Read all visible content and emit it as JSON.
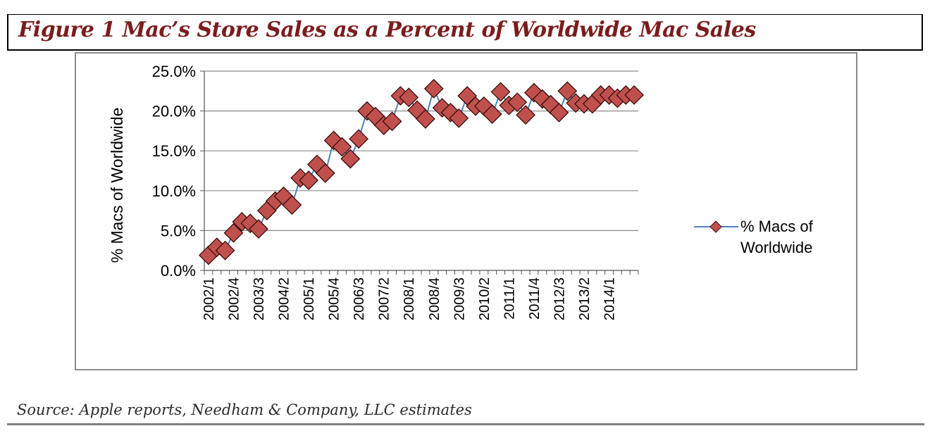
{
  "figure": {
    "title": "Figure 1   Mac’s Store Sales as a Percent of Worldwide Mac Sales",
    "source": "Source: Apple reports, Needham & Company, LLC estimates"
  },
  "colors": {
    "title": "#7b1c1c",
    "marker_fill": "#c0504d",
    "marker_stroke": "#3a0d0d",
    "line": "#4f81bd",
    "grid": "#8c8c8c"
  },
  "chart_data": {
    "type": "line",
    "title": "",
    "ylabel": "% Macs of Worldwide",
    "xlabel": "",
    "ylim": [
      0,
      25
    ],
    "yticks": [
      "0.0%",
      "5.0%",
      "10.0%",
      "15.0%",
      "20.0%",
      "25.0%"
    ],
    "grid": true,
    "legend": {
      "position": "right",
      "entries": [
        "% Macs of Worldwide"
      ]
    },
    "x_tick_labels": [
      "2002/1",
      "2002/4",
      "2003/3",
      "2004/2",
      "2005/1",
      "2005/4",
      "2006/3",
      "2007/2",
      "2008/1",
      "2008/4",
      "2009/3",
      "2010/2",
      "2011/1",
      "2011/4",
      "2012/3",
      "2013/2",
      "2014/1"
    ],
    "categories": [
      "2002/1",
      "2002/2",
      "2002/3",
      "2002/4",
      "2003/1",
      "2003/2",
      "2003/3",
      "2003/4",
      "2004/1",
      "2004/2",
      "2004/3",
      "2004/4",
      "2005/1",
      "2005/2",
      "2005/3",
      "2005/4",
      "2006/1",
      "2006/2",
      "2006/3",
      "2006/4",
      "2007/1",
      "2007/2",
      "2007/3",
      "2007/4",
      "2008/1",
      "2008/2",
      "2008/3",
      "2008/4",
      "2009/1",
      "2009/2",
      "2009/3",
      "2009/4",
      "2010/1",
      "2010/2",
      "2010/3",
      "2010/4",
      "2011/1",
      "2011/2",
      "2011/3",
      "2011/4",
      "2012/1",
      "2012/2",
      "2012/3",
      "2012/4",
      "2013/1",
      "2013/2",
      "2013/3",
      "2013/4",
      "2014/1",
      "2014/2",
      "2014/3",
      "2014/4"
    ],
    "series": [
      {
        "name": "% Macs of Worldwide",
        "values": [
          1.9,
          2.9,
          2.5,
          4.7,
          6.1,
          5.9,
          5.2,
          7.5,
          8.7,
          9.3,
          8.2,
          11.6,
          11.3,
          13.3,
          12.2,
          16.3,
          15.5,
          14.0,
          16.5,
          20.0,
          19.3,
          18.2,
          18.7,
          21.9,
          21.7,
          20.1,
          19.0,
          22.8,
          20.4,
          19.8,
          19.1,
          21.9,
          20.6,
          20.6,
          19.6,
          22.4,
          20.7,
          21.1,
          19.5,
          22.3,
          21.5,
          20.8,
          19.8,
          22.5,
          21.0,
          20.9,
          20.9,
          22.0,
          22.0,
          21.6,
          22.0,
          22.0
        ]
      }
    ]
  }
}
